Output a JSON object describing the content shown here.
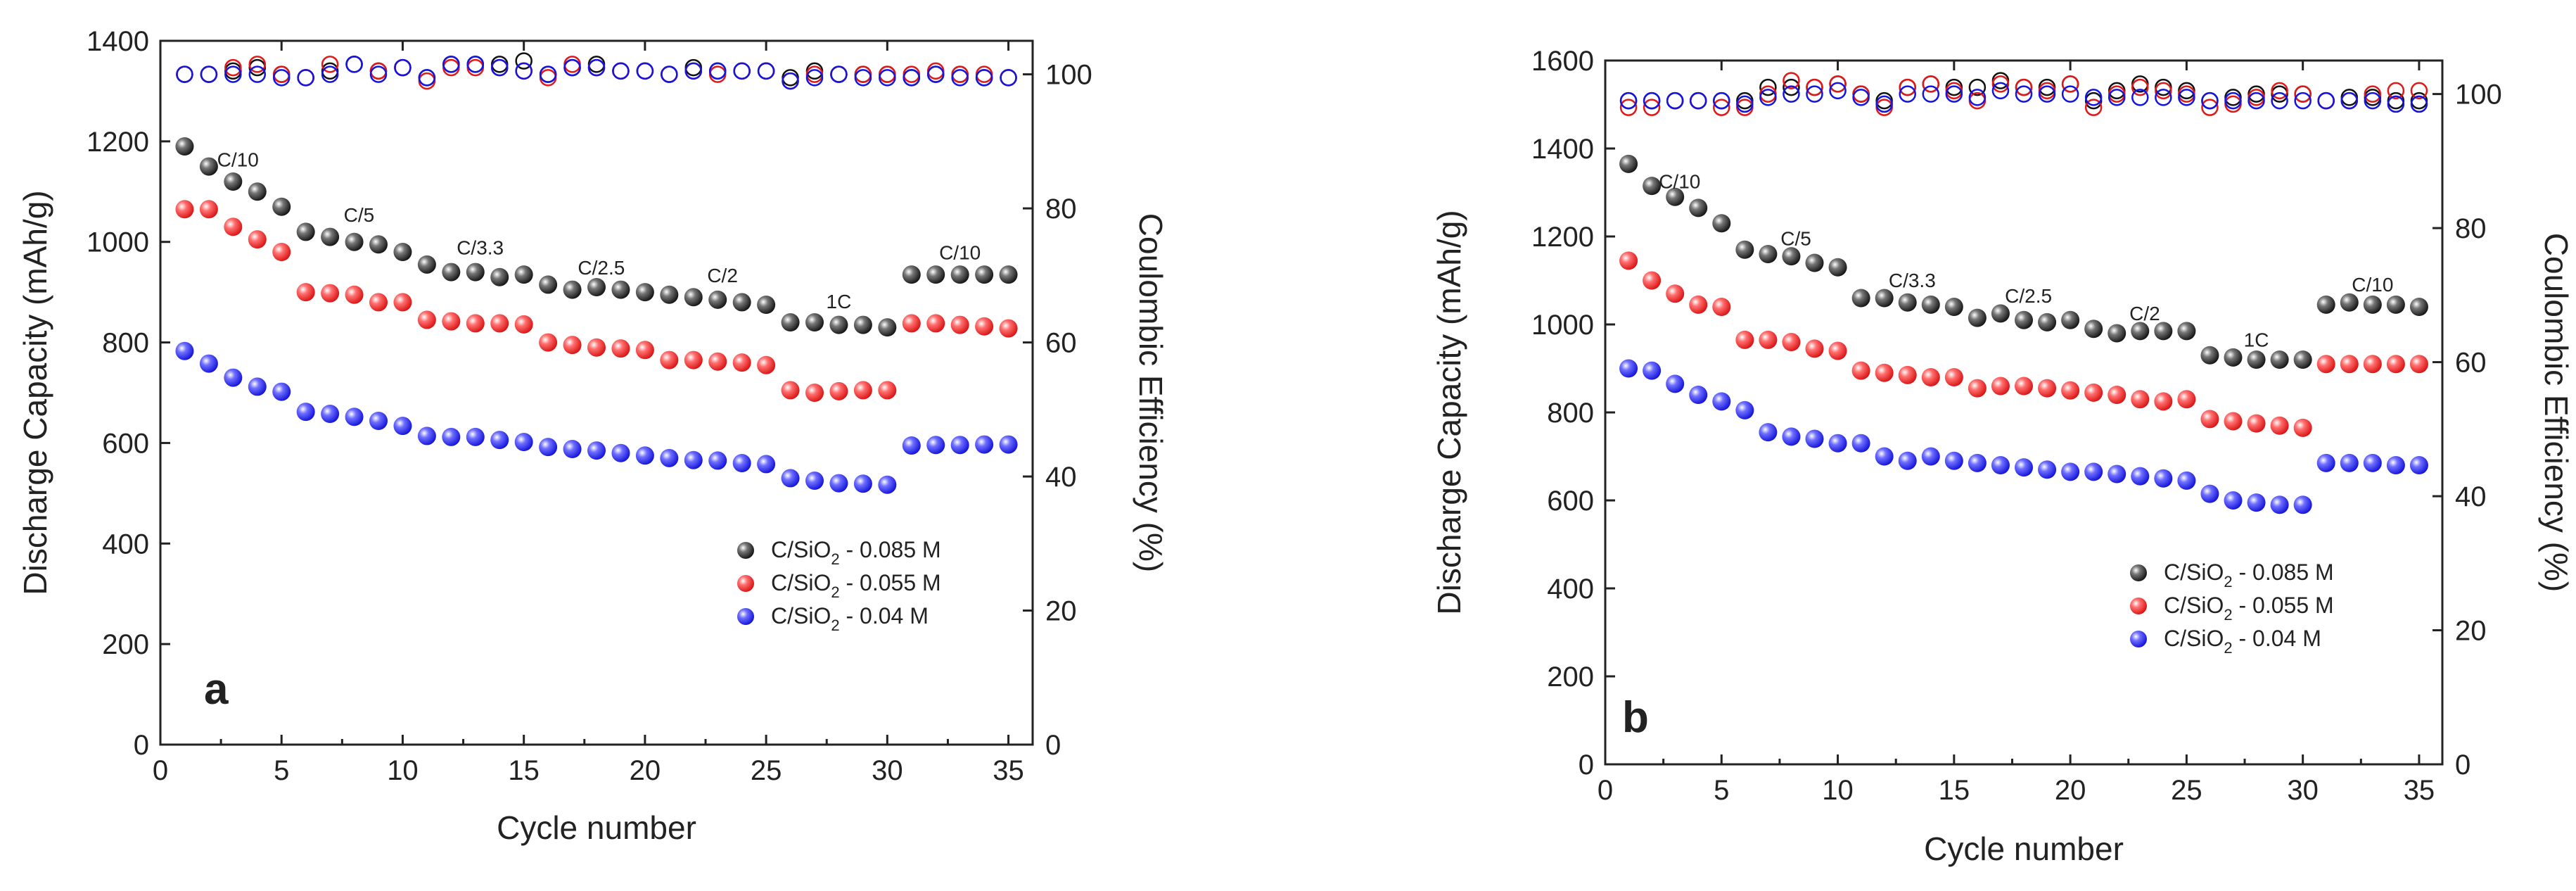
{
  "colors": {
    "s085": "#111111",
    "s055": "#e01818",
    "s040": "#1414e0"
  },
  "chart_data": [
    {
      "type": "scatter",
      "panel_label": "a",
      "xlabel": "Cycle number",
      "ylabel": "Discharge Capacity (mAh/g)",
      "y2label": "Coulombic Efficiency (%)",
      "xlim": [
        0,
        36
      ],
      "ylim": [
        0,
        1400
      ],
      "y2lim": [
        0,
        105
      ],
      "xticks": [
        0,
        5,
        10,
        15,
        20,
        25,
        30,
        35
      ],
      "yticks": [
        0,
        200,
        400,
        600,
        800,
        1000,
        1200,
        1400
      ],
      "y2ticks": [
        0,
        20,
        40,
        60,
        80,
        100
      ],
      "legend_position": "lower-right",
      "rate_labels": [
        {
          "text": "C/10",
          "x": 3.2,
          "y": 1150
        },
        {
          "text": "C/5",
          "x": 8.2,
          "y": 1040
        },
        {
          "text": "C/3.3",
          "x": 13.2,
          "y": 975
        },
        {
          "text": "C/2.5",
          "x": 18.2,
          "y": 935
        },
        {
          "text": "C/2",
          "x": 23.2,
          "y": 920
        },
        {
          "text": "1C",
          "x": 28.0,
          "y": 868
        },
        {
          "text": "C/10",
          "x": 33.0,
          "y": 965
        }
      ],
      "series": [
        {
          "name": "C/SiO2 - 0.085 M",
          "legend_main": "C/SiO",
          "legend_sub": "2",
          "legend_tail": " - 0.085 M",
          "color_key": "s085",
          "x": [
            1,
            2,
            3,
            4,
            5,
            6,
            7,
            8,
            9,
            10,
            11,
            12,
            13,
            14,
            15,
            16,
            17,
            18,
            19,
            20,
            21,
            22,
            23,
            24,
            25,
            26,
            27,
            28,
            29,
            30,
            31,
            32,
            33,
            34,
            35
          ],
          "capacity": [
            1190,
            1150,
            1120,
            1100,
            1070,
            1020,
            1010,
            1000,
            995,
            980,
            955,
            940,
            940,
            930,
            935,
            915,
            905,
            910,
            905,
            900,
            895,
            890,
            885,
            880,
            875,
            840,
            840,
            835,
            835,
            830,
            935,
            935,
            935,
            935,
            935
          ],
          "efficiency": [
            100,
            100,
            100.5,
            101,
            100,
            99.5,
            100.5,
            101.5,
            100.5,
            101,
            99.5,
            101.5,
            101.5,
            101.5,
            102,
            100,
            101,
            101.5,
            100.5,
            100.5,
            100,
            101,
            100.5,
            100.5,
            100.5,
            99.5,
            100.5,
            100,
            100,
            100,
            99.5,
            100,
            100,
            99.5,
            99.5
          ]
        },
        {
          "name": "C/SiO2 - 0.055 M",
          "legend_main": "C/SiO",
          "legend_sub": "2",
          "legend_tail": " - 0.055 M",
          "color_key": "s055",
          "x": [
            1,
            2,
            3,
            4,
            5,
            6,
            7,
            8,
            9,
            10,
            11,
            12,
            13,
            14,
            15,
            16,
            17,
            18,
            19,
            20,
            21,
            22,
            23,
            24,
            25,
            26,
            27,
            28,
            29,
            30,
            31,
            32,
            33,
            34,
            35
          ],
          "capacity": [
            1065,
            1065,
            1030,
            1005,
            980,
            900,
            898,
            895,
            880,
            880,
            845,
            842,
            838,
            838,
            836,
            800,
            795,
            790,
            788,
            785,
            765,
            765,
            762,
            760,
            755,
            705,
            700,
            703,
            705,
            705,
            838,
            838,
            835,
            832,
            828
          ],
          "efficiency": [
            100,
            100,
            101,
            101.5,
            100,
            99.5,
            101.5,
            101.5,
            100.5,
            101,
            99,
            101,
            101,
            101,
            100.5,
            99.5,
            101.5,
            101,
            100.5,
            100.5,
            100,
            100.5,
            100,
            100.5,
            100.5,
            99,
            100,
            100,
            100,
            100,
            100,
            100.5,
            100,
            100,
            99.5
          ]
        },
        {
          "name": "C/SiO2 - 0.04 M",
          "legend_main": "C/SiO",
          "legend_sub": "2",
          "legend_tail": " - 0.04 M",
          "color_key": "s040",
          "x": [
            1,
            2,
            3,
            4,
            5,
            6,
            7,
            8,
            9,
            10,
            11,
            12,
            13,
            14,
            15,
            16,
            17,
            18,
            19,
            20,
            21,
            22,
            23,
            24,
            25,
            26,
            27,
            28,
            29,
            30,
            31,
            32,
            33,
            34,
            35
          ],
          "capacity": [
            783,
            758,
            730,
            712,
            702,
            662,
            658,
            652,
            644,
            634,
            614,
            612,
            612,
            606,
            602,
            592,
            588,
            585,
            580,
            575,
            570,
            566,
            565,
            560,
            558,
            530,
            525,
            520,
            519,
            517,
            595,
            596,
            596,
            597,
            597
          ],
          "efficiency": [
            100,
            100,
            100,
            100,
            99.5,
            99.5,
            100,
            101.5,
            100,
            101,
            99.5,
            101.5,
            101.5,
            101,
            100.5,
            100,
            101,
            101,
            100.5,
            100.5,
            100,
            100.5,
            100.5,
            100.5,
            100.5,
            99,
            99.5,
            100,
            99.5,
            99.5,
            99.5,
            100,
            99.5,
            99.5,
            99.5
          ]
        }
      ]
    },
    {
      "type": "scatter",
      "panel_label": "b",
      "xlabel": "Cycle number",
      "ylabel": "Discharge Capacity (mAh/g)",
      "y2label": "Coulombic Efficiency (%)",
      "xlim": [
        0,
        36
      ],
      "ylim": [
        0,
        1600
      ],
      "y2lim": [
        0,
        105
      ],
      "xticks": [
        0,
        5,
        10,
        15,
        20,
        25,
        30,
        35
      ],
      "yticks": [
        0,
        200,
        400,
        600,
        800,
        1000,
        1200,
        1400,
        1600
      ],
      "y2ticks": [
        0,
        20,
        40,
        60,
        80,
        100
      ],
      "legend_position": "lower-right",
      "rate_labels": [
        {
          "text": "C/10",
          "x": 3.2,
          "y": 1310
        },
        {
          "text": "C/5",
          "x": 8.2,
          "y": 1180
        },
        {
          "text": "C/3.3",
          "x": 13.2,
          "y": 1085
        },
        {
          "text": "C/2.5",
          "x": 18.2,
          "y": 1050
        },
        {
          "text": "C/2",
          "x": 23.2,
          "y": 1010
        },
        {
          "text": "1C",
          "x": 28.0,
          "y": 950
        },
        {
          "text": "C/10",
          "x": 33.0,
          "y": 1075
        }
      ],
      "series": [
        {
          "name": "C/SiO2 - 0.085 M",
          "legend_main": "C/SiO",
          "legend_sub": "2",
          "legend_tail": " - 0.085 M",
          "color_key": "s085",
          "x": [
            1,
            2,
            3,
            4,
            5,
            6,
            7,
            8,
            9,
            10,
            11,
            12,
            13,
            14,
            15,
            16,
            17,
            18,
            19,
            20,
            21,
            22,
            23,
            24,
            25,
            26,
            27,
            28,
            29,
            30,
            31,
            32,
            33,
            34,
            35
          ],
          "capacity": [
            1365,
            1315,
            1290,
            1265,
            1230,
            1170,
            1160,
            1155,
            1140,
            1130,
            1060,
            1060,
            1050,
            1045,
            1040,
            1015,
            1025,
            1010,
            1005,
            1010,
            990,
            980,
            985,
            985,
            985,
            930,
            925,
            920,
            920,
            920,
            1045,
            1050,
            1045,
            1045,
            1040
          ],
          "efficiency": [
            99,
            99,
            99,
            99,
            99,
            99,
            101,
            101,
            101,
            101.5,
            100,
            99,
            101,
            101.5,
            101,
            101,
            102,
            101,
            101,
            101.5,
            99,
            100.5,
            101.5,
            101,
            100.5,
            99,
            99.5,
            100,
            100,
            100,
            99,
            99.5,
            99.5,
            99,
            99
          ]
        },
        {
          "name": "C/SiO2 - 0.055 M",
          "legend_main": "C/SiO",
          "legend_sub": "2",
          "legend_tail": " - 0.055 M",
          "color_key": "s055",
          "x": [
            1,
            2,
            3,
            4,
            5,
            6,
            7,
            8,
            9,
            10,
            11,
            12,
            13,
            14,
            15,
            16,
            17,
            18,
            19,
            20,
            21,
            22,
            23,
            24,
            25,
            26,
            27,
            28,
            29,
            30,
            31,
            32,
            33,
            34,
            35
          ],
          "capacity": [
            1145,
            1100,
            1070,
            1045,
            1040,
            965,
            965,
            960,
            945,
            940,
            895,
            890,
            885,
            880,
            880,
            855,
            860,
            860,
            855,
            850,
            845,
            840,
            830,
            825,
            830,
            785,
            780,
            775,
            770,
            765,
            910,
            910,
            910,
            910,
            910
          ],
          "efficiency": [
            98,
            98,
            99,
            99,
            98,
            98,
            100,
            102,
            101,
            101.5,
            100,
            98,
            101,
            101.5,
            100.5,
            99,
            101.5,
            101,
            100.5,
            101.5,
            98,
            100,
            101,
            100.5,
            100,
            98,
            98.5,
            99.5,
            100.5,
            100,
            99,
            99,
            100,
            100.5,
            100.5
          ]
        },
        {
          "name": "C/SiO2 - 0.04 M",
          "legend_main": "C/SiO",
          "legend_sub": "2",
          "legend_tail": " - 0.04 M",
          "color_key": "s040",
          "x": [
            1,
            2,
            3,
            4,
            5,
            6,
            7,
            8,
            9,
            10,
            11,
            12,
            13,
            14,
            15,
            16,
            17,
            18,
            19,
            20,
            21,
            22,
            23,
            24,
            25,
            26,
            27,
            28,
            29,
            30,
            31,
            32,
            33,
            34,
            35
          ],
          "capacity": [
            900,
            895,
            865,
            840,
            825,
            805,
            755,
            745,
            740,
            730,
            730,
            700,
            690,
            700,
            690,
            685,
            680,
            675,
            670,
            665,
            665,
            660,
            655,
            650,
            645,
            615,
            600,
            595,
            590,
            590,
            685,
            685,
            685,
            680,
            680
          ],
          "efficiency": [
            99,
            99,
            99,
            99,
            99,
            98.5,
            99.5,
            100,
            100,
            100.5,
            99.5,
            98.5,
            100,
            100,
            100,
            99.5,
            100.5,
            100,
            100,
            100,
            99.5,
            99.5,
            99.5,
            99.5,
            99.5,
            99,
            99,
            99,
            99,
            99,
            99,
            99,
            99,
            98.5,
            98.5
          ]
        }
      ]
    }
  ]
}
